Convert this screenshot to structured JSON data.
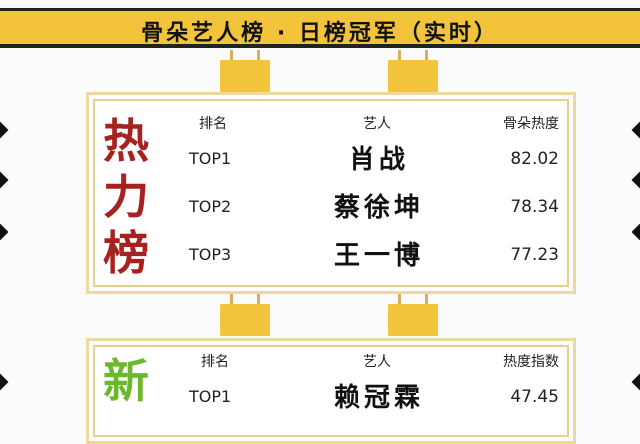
{
  "banner": {
    "title": "骨朵艺人榜 · 日榜冠军（实时）"
  },
  "board1": {
    "side_label": [
      "热",
      "力",
      "榜"
    ],
    "headers": {
      "rank": "排名",
      "artist": "艺人",
      "score": "骨朵热度"
    },
    "rows": [
      {
        "rank": "TOP1",
        "name": "肖战",
        "score": "82.02"
      },
      {
        "rank": "TOP2",
        "name": "蔡徐坤",
        "score": "78.34"
      },
      {
        "rank": "TOP3",
        "name": "王一博",
        "score": "77.23"
      }
    ]
  },
  "board2": {
    "side_label": [
      "新"
    ],
    "headers": {
      "rank": "排名",
      "artist": "艺人",
      "score": "热度指数"
    },
    "rows": [
      {
        "rank": "TOP1",
        "name": "赖冠霖",
        "score": "47.45"
      }
    ]
  },
  "colors": {
    "banner": "#f3c43b",
    "red_label": "#a6211f",
    "green_label": "#6cb82b"
  }
}
